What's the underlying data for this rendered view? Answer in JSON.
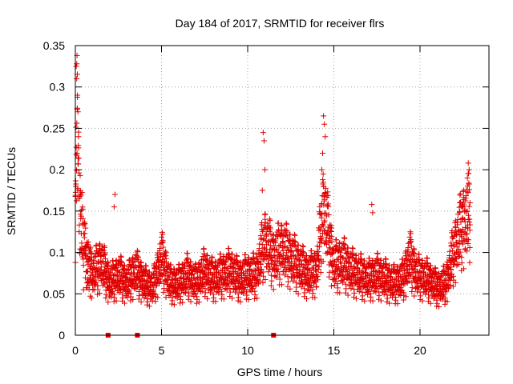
{
  "chart_data": {
    "type": "scatter",
    "title": "Day 184 of 2017, SRMTID for receiver flrs",
    "xlabel": "GPS time / hours",
    "ylabel": "SRMTID / TECUs",
    "xlim": [
      0,
      24
    ],
    "ylim": [
      0,
      0.35
    ],
    "xticks": [
      0,
      5,
      10,
      15,
      20
    ],
    "yticks": [
      0,
      0.05,
      0.1,
      0.15,
      0.2,
      0.25,
      0.3,
      0.35
    ],
    "xtick_labels": [
      "0",
      "5",
      "10",
      "15",
      "20"
    ],
    "ytick_labels": [
      "0",
      "0.05",
      "0.1",
      "0.15",
      "0.2",
      "0.25",
      "0.3",
      "0.35"
    ],
    "grid": true,
    "marker": "plus",
    "color": "#e00000",
    "gap_markers_x": [
      1.9,
      3.6,
      11.5
    ],
    "series": [
      {
        "name": "SRMTID",
        "profile": [
          {
            "x": 0.0,
            "y": 0.12
          },
          {
            "x": 0.1,
            "y": 0.26
          },
          {
            "x": 0.2,
            "y": 0.17
          },
          {
            "x": 0.4,
            "y": 0.12
          },
          {
            "x": 0.6,
            "y": 0.09
          },
          {
            "x": 1.0,
            "y": 0.07
          },
          {
            "x": 1.5,
            "y": 0.085
          },
          {
            "x": 2.0,
            "y": 0.06
          },
          {
            "x": 2.5,
            "y": 0.07
          },
          {
            "x": 3.0,
            "y": 0.06
          },
          {
            "x": 3.5,
            "y": 0.075
          },
          {
            "x": 4.0,
            "y": 0.06
          },
          {
            "x": 4.5,
            "y": 0.055
          },
          {
            "x": 5.0,
            "y": 0.09
          },
          {
            "x": 5.5,
            "y": 0.06
          },
          {
            "x": 6.0,
            "y": 0.06
          },
          {
            "x": 6.5,
            "y": 0.07
          },
          {
            "x": 7.0,
            "y": 0.06
          },
          {
            "x": 7.5,
            "y": 0.075
          },
          {
            "x": 8.0,
            "y": 0.065
          },
          {
            "x": 8.5,
            "y": 0.07
          },
          {
            "x": 9.0,
            "y": 0.075
          },
          {
            "x": 9.5,
            "y": 0.065
          },
          {
            "x": 10.0,
            "y": 0.07
          },
          {
            "x": 10.5,
            "y": 0.07
          },
          {
            "x": 11.0,
            "y": 0.11
          },
          {
            "x": 11.5,
            "y": 0.09
          },
          {
            "x": 12.0,
            "y": 0.1
          },
          {
            "x": 12.5,
            "y": 0.09
          },
          {
            "x": 13.0,
            "y": 0.08
          },
          {
            "x": 13.5,
            "y": 0.07
          },
          {
            "x": 14.0,
            "y": 0.075
          },
          {
            "x": 14.4,
            "y": 0.15
          },
          {
            "x": 15.0,
            "y": 0.08
          },
          {
            "x": 15.5,
            "y": 0.085
          },
          {
            "x": 16.0,
            "y": 0.075
          },
          {
            "x": 16.5,
            "y": 0.07
          },
          {
            "x": 17.0,
            "y": 0.065
          },
          {
            "x": 17.5,
            "y": 0.07
          },
          {
            "x": 18.0,
            "y": 0.065
          },
          {
            "x": 18.5,
            "y": 0.06
          },
          {
            "x": 19.0,
            "y": 0.065
          },
          {
            "x": 19.4,
            "y": 0.09
          },
          {
            "x": 19.8,
            "y": 0.07
          },
          {
            "x": 20.5,
            "y": 0.065
          },
          {
            "x": 21.0,
            "y": 0.055
          },
          {
            "x": 21.5,
            "y": 0.06
          },
          {
            "x": 22.0,
            "y": 0.1
          },
          {
            "x": 22.5,
            "y": 0.13
          },
          {
            "x": 22.9,
            "y": 0.14
          }
        ],
        "spikes": [
          {
            "x": 0.05,
            "y": 0.325
          },
          {
            "x": 0.08,
            "y": 0.31
          },
          {
            "x": 0.12,
            "y": 0.29
          },
          {
            "x": 0.15,
            "y": 0.27
          },
          {
            "x": 0.18,
            "y": 0.24
          },
          {
            "x": 0.1,
            "y": 0.22
          },
          {
            "x": 2.3,
            "y": 0.17
          },
          {
            "x": 2.25,
            "y": 0.155
          },
          {
            "x": 10.9,
            "y": 0.245
          },
          {
            "x": 10.95,
            "y": 0.235
          },
          {
            "x": 11.0,
            "y": 0.2
          },
          {
            "x": 10.85,
            "y": 0.175
          },
          {
            "x": 14.4,
            "y": 0.265
          },
          {
            "x": 14.45,
            "y": 0.255
          },
          {
            "x": 14.5,
            "y": 0.24
          },
          {
            "x": 14.35,
            "y": 0.22
          },
          {
            "x": 14.3,
            "y": 0.2
          },
          {
            "x": 14.4,
            "y": 0.18
          },
          {
            "x": 17.2,
            "y": 0.158
          },
          {
            "x": 17.25,
            "y": 0.148
          },
          {
            "x": 22.8,
            "y": 0.208
          },
          {
            "x": 22.85,
            "y": 0.2
          },
          {
            "x": 22.75,
            "y": 0.19
          },
          {
            "x": 22.9,
            "y": 0.16
          },
          {
            "x": 22.3,
            "y": 0.16
          },
          {
            "x": 22.5,
            "y": 0.155
          }
        ]
      }
    ]
  }
}
